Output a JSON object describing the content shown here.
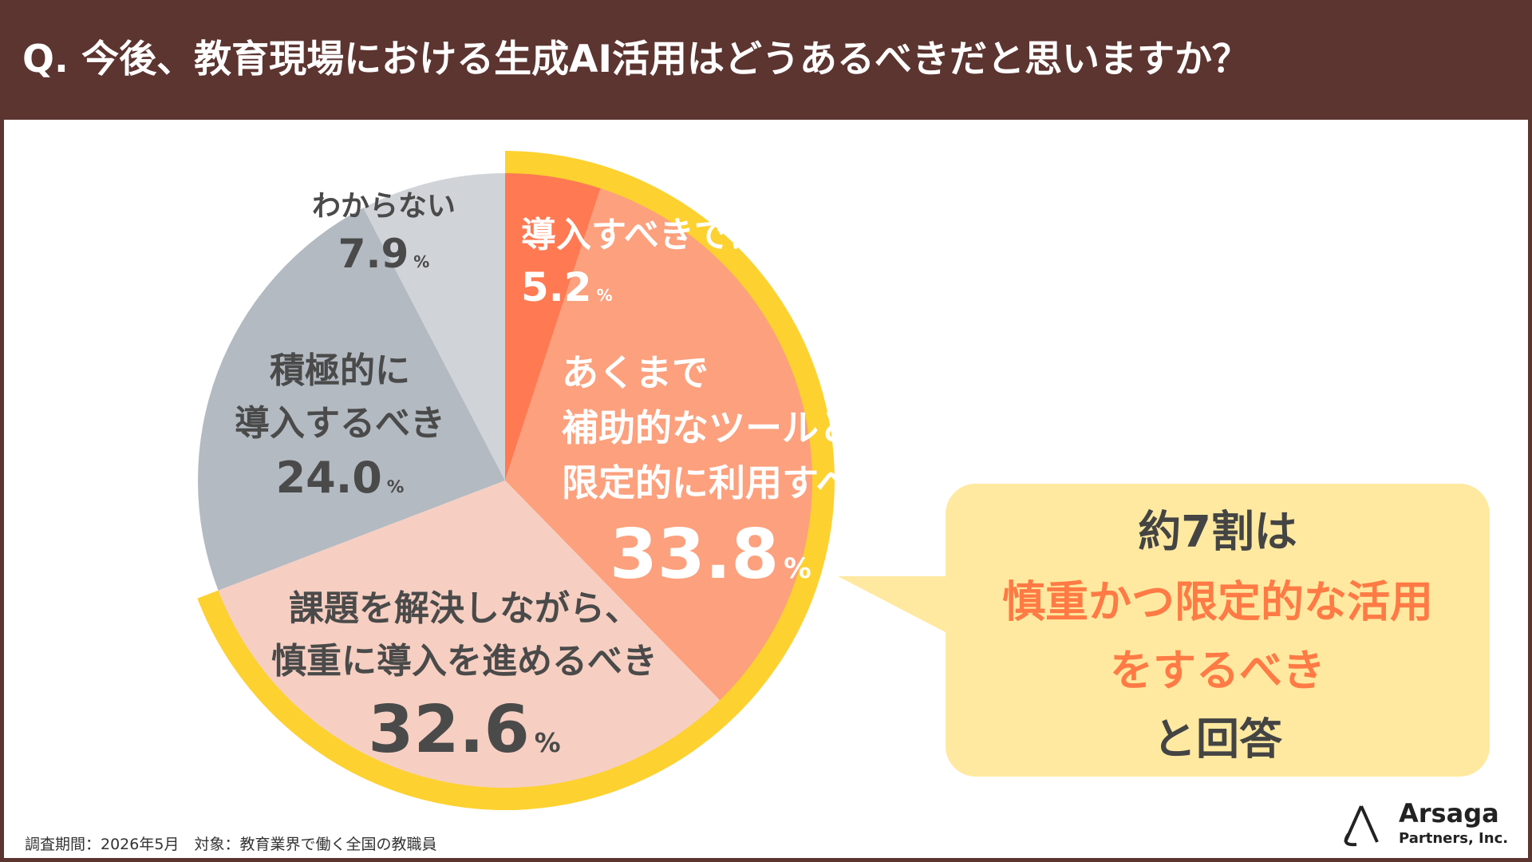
{
  "chart_data": {
    "type": "pie",
    "title": "Q. 今後、教育現場における生成AI活用はどうあるべきだと思いますか？",
    "categories": [
      "導入すべきではない",
      "あくまで\n補助的なツールとして、\n限定的に利用すべき",
      "課題を解決しながら、\n慎重に導入を進めるべき",
      "積極的に\n導入するべき",
      "わからない"
    ],
    "values": [
      5.2,
      33.8,
      32.6,
      24.0,
      7.9
    ],
    "value_labels": [
      "5.2",
      "33.8",
      "32.6",
      "24.0",
      "7.9"
    ],
    "unit": "%",
    "colors": [
      "#ff7952",
      "#fca07d",
      "#f6cfc2",
      "#b3bac1",
      "#d0d4d9"
    ],
    "highlight_color": "#fdd130",
    "callout": [
      "約7割は",
      "慎重かつ限定的な活用",
      "をするべき",
      "と回答"
    ],
    "footnote": "調査期間：2026年5月　対象：教育業界で働く全国の教職員",
    "logo": [
      "Arsaga",
      "Partners, Inc."
    ]
  }
}
